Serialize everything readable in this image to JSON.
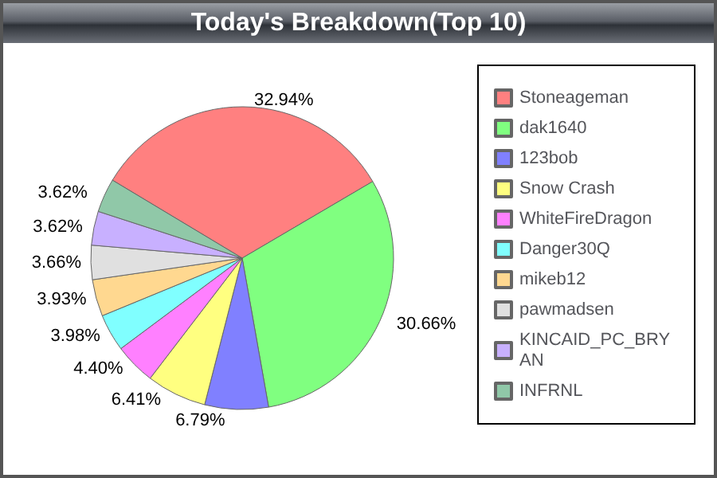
{
  "chart_data": {
    "type": "pie",
    "title": "Today's Breakdown(Top 10)",
    "categories": [
      "Stoneageman",
      "dak1640",
      "123bob",
      "Snow Crash",
      "WhiteFireDragon",
      "Danger30Q",
      "mikeb12",
      "pawmadsen",
      "KINCAID_PC_BRYAN",
      "INFRNL"
    ],
    "values": [
      32.94,
      30.66,
      6.79,
      6.41,
      4.4,
      3.98,
      3.93,
      3.66,
      3.62,
      3.62
    ],
    "value_labels": [
      "32.94%",
      "30.66%",
      "6.79%",
      "6.41%",
      "4.40%",
      "3.98%",
      "3.93%",
      "3.66%",
      "3.62%",
      "3.62%"
    ],
    "colors": [
      "#ff8080",
      "#80ff80",
      "#8080ff",
      "#ffff80",
      "#ff80ff",
      "#80ffff",
      "#ffd890",
      "#e0e0e0",
      "#c8b0ff",
      "#90c8a8"
    ],
    "legend": "right"
  }
}
